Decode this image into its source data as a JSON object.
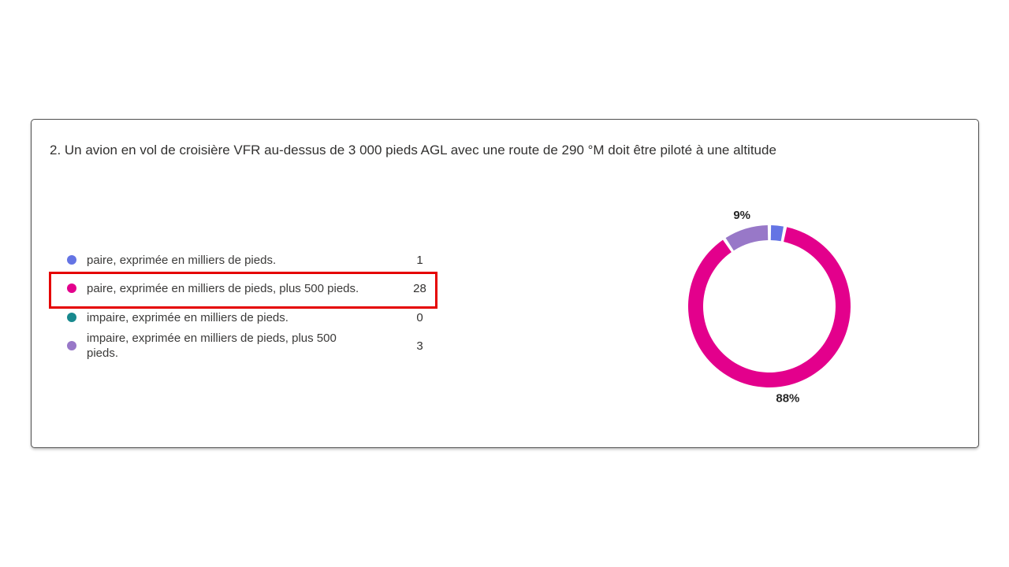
{
  "question": {
    "title": "2. Un avion en vol de croisière VFR au-dessus de 3 000 pieds AGL avec une route de 290 °M doit être piloté à une altitude",
    "options": [
      {
        "label": "paire, exprimée en milliers de pieds.",
        "count": "1",
        "color": "#6474E4"
      },
      {
        "label": "paire, exprimée en milliers de pieds, plus 500 pieds.",
        "count": "28",
        "color": "#E3008C",
        "highlighted": true
      },
      {
        "label": "impaire, exprimée en milliers de pieds.",
        "count": "0",
        "color": "#18898E"
      },
      {
        "label": "impaire, exprimée en milliers de pieds, plus 500 pieds.",
        "count": "3",
        "color": "#9878C8"
      }
    ]
  },
  "annotation": {
    "type": "red-rectangle",
    "color": "#E50000",
    "marks_option_index": 1
  },
  "chart_data": {
    "type": "pie",
    "donut": true,
    "start_angle_deg": 0,
    "direction": "clockwise",
    "categories": [
      "paire, exprimée en milliers de pieds.",
      "paire, exprimée en milliers de pieds, plus 500 pieds.",
      "impaire, exprimée en milliers de pieds.",
      "impaire, exprimée en milliers de pieds, plus 500 pieds."
    ],
    "values": [
      1,
      28,
      0,
      3
    ],
    "percent_labels": [
      "",
      "88%",
      "",
      "9%"
    ],
    "colors": [
      "#6474E4",
      "#E3008C",
      "#18898E",
      "#9878C8"
    ],
    "legend_position": "left",
    "slice_gap_deg": 1.2
  }
}
